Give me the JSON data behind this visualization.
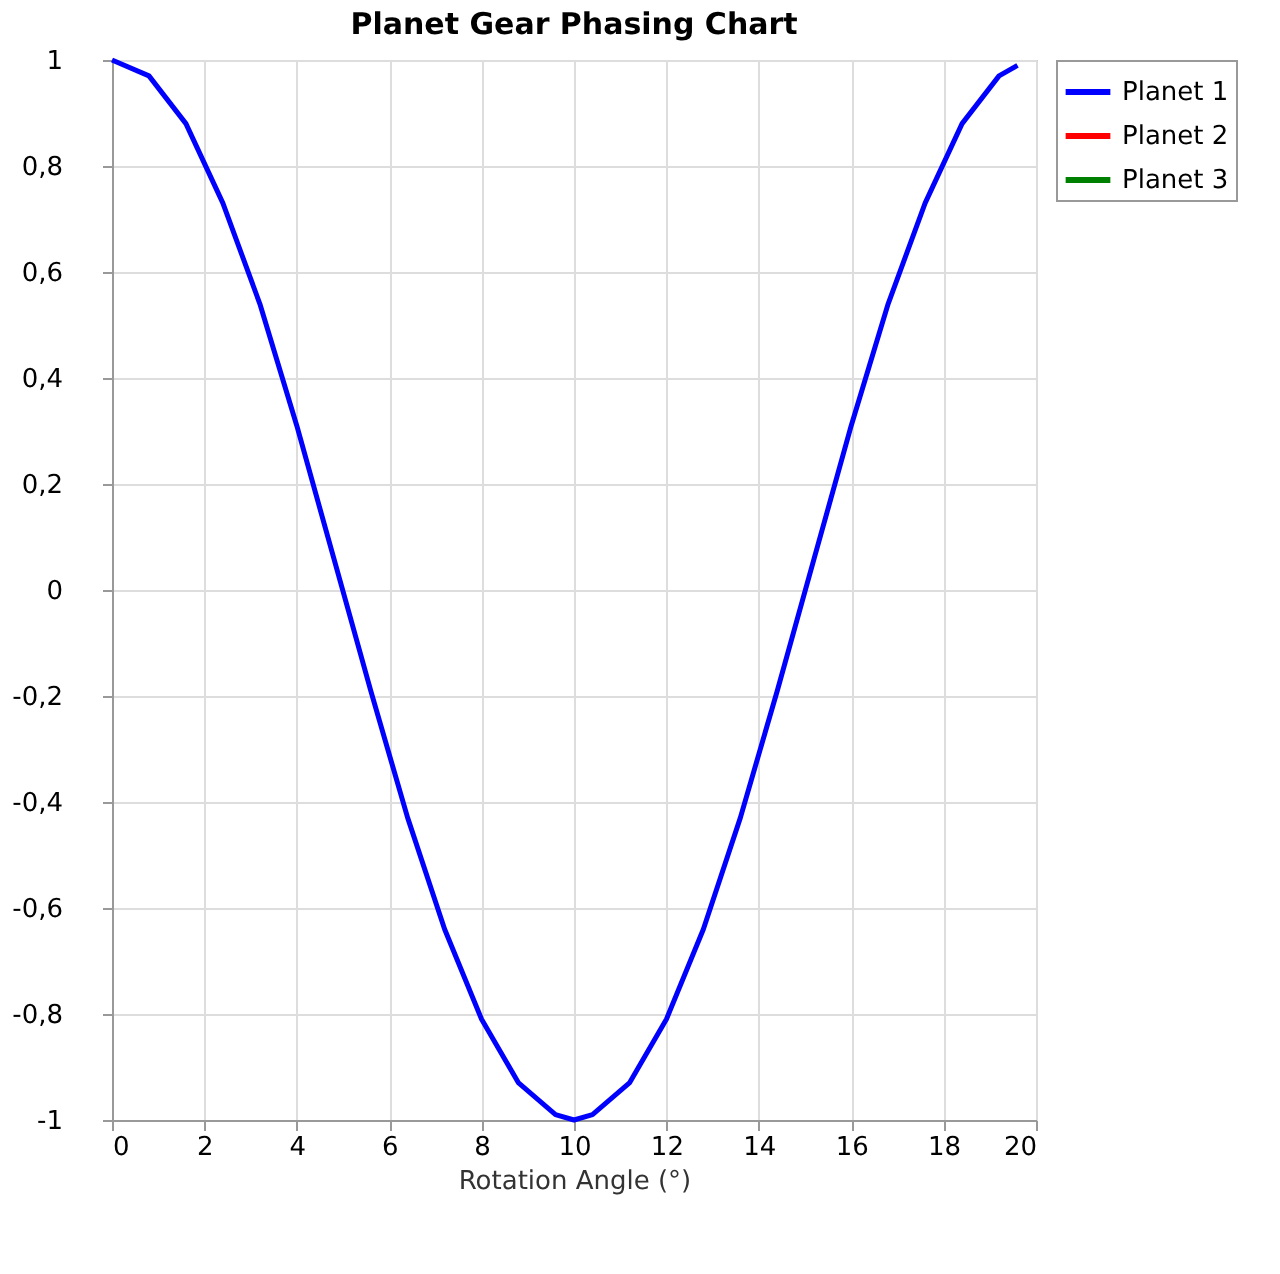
{
  "chart_data": {
    "type": "line",
    "title": "Planet Gear Phasing Chart",
    "xlabel": "Rotation Angle (°)",
    "x": [
      0,
      0.8,
      1.6,
      2.4,
      3.2,
      4.0,
      4.8,
      5.6,
      6.4,
      7.2,
      8.0,
      8.8,
      9.6,
      10,
      10.4,
      11.2,
      12.0,
      12.8,
      13.6,
      14.4,
      15.2,
      16.0,
      16.8,
      17.6,
      18.4,
      19.2,
      19.6
    ],
    "series": [
      {
        "name": "Planet 1",
        "color": "#0000ff",
        "values": [
          1,
          0.97,
          0.88,
          0.73,
          0.54,
          0.31,
          0.06,
          -0.19,
          -0.43,
          -0.64,
          -0.81,
          -0.93,
          -0.99,
          -1,
          -0.99,
          -0.93,
          -0.81,
          -0.64,
          -0.43,
          -0.19,
          0.06,
          0.31,
          0.54,
          0.73,
          0.88,
          0.97,
          0.99
        ]
      },
      {
        "name": "Planet 2",
        "color": "#ff0000",
        "values": [
          null,
          null,
          null,
          null,
          null,
          null,
          null,
          null,
          null,
          null,
          null,
          null,
          null,
          null,
          null,
          null,
          null,
          null,
          null,
          null,
          null,
          null,
          null,
          null,
          null,
          null,
          null
        ]
      },
      {
        "name": "Planet 3",
        "color": "#008000",
        "values": [
          null,
          null,
          null,
          null,
          null,
          null,
          null,
          null,
          null,
          null,
          null,
          null,
          null,
          null,
          null,
          null,
          null,
          null,
          null,
          null,
          null,
          null,
          null,
          null,
          null,
          null,
          null
        ]
      }
    ],
    "xlim": [
      0,
      20
    ],
    "xticks": [
      0,
      2,
      4,
      6,
      8,
      10,
      12,
      14,
      16,
      18,
      20
    ],
    "ylim": [
      -1,
      1
    ],
    "yticks": [
      -1,
      {
        "value": -0.8,
        "label": "-0,8"
      },
      {
        "value": -0.6,
        "label": "-0,6"
      },
      {
        "value": -0.4,
        "label": "-0,4"
      },
      {
        "value": -0.2,
        "label": "-0,2"
      },
      0,
      {
        "value": 0.2,
        "label": "0,2"
      },
      {
        "value": 0.4,
        "label": "0,4"
      },
      {
        "value": 0.6,
        "label": "0,6"
      },
      {
        "value": 0.8,
        "label": "0,8"
      },
      1
    ],
    "grid": true,
    "legend": "top right",
    "marker": "none",
    "line_style": "solid"
  }
}
